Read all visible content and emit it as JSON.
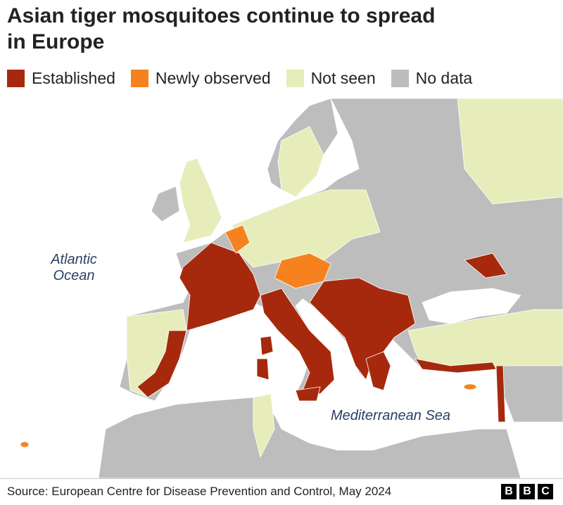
{
  "header": {
    "title": "Asian tiger mosquitoes continue to spread in Europe"
  },
  "legend": [
    {
      "label": "Established",
      "color": "#a6290d"
    },
    {
      "label": "Newly observed",
      "color": "#f5821f"
    },
    {
      "label": "Not seen",
      "color": "#e6edbb"
    },
    {
      "label": "No data",
      "color": "#bdbdbd"
    }
  ],
  "map": {
    "labels": [
      "Atlantic Ocean",
      "Mediterranean Sea"
    ]
  },
  "footer": {
    "source": "Source: European Centre for Disease Prevention and Control, May 2024",
    "logo": [
      "B",
      "B",
      "C"
    ]
  }
}
